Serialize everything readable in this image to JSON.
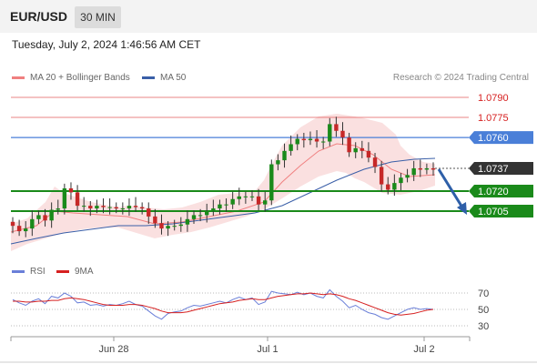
{
  "header": {
    "symbol": "EUR/USD",
    "timeframe": "30 MIN",
    "timestamp": "Tuesday, July 2, 2024 1:46:56 AM CET"
  },
  "legend": {
    "ma20_label": "MA 20 + Bollinger Bands",
    "ma50_label": "MA 50",
    "credit": "Research © 2024 Trading Central"
  },
  "colors": {
    "ma20": "#f08080",
    "ma50": "#3a5fa8",
    "support": "#1a8a1a",
    "resistance": "#e05050",
    "pivot": "#4a7fd8",
    "current": "#333333",
    "arrow": "#2e5fa8",
    "rsi": "#6a7fd8",
    "rsi_ma": "#d62020"
  },
  "price_levels": [
    {
      "value": "1.0790",
      "type": "resistance"
    },
    {
      "value": "1.0775",
      "type": "resistance"
    },
    {
      "value": "1.0760",
      "type": "pivot"
    },
    {
      "value": "1.0737",
      "type": "current"
    },
    {
      "value": "1.0720",
      "type": "support"
    },
    {
      "value": "1.0705",
      "type": "support"
    }
  ],
  "rsi_panel": {
    "rsi_label": "RSI",
    "ma_label": "9MA",
    "levels": [
      "70",
      "50",
      "30"
    ]
  },
  "x_axis": [
    "Jun 28",
    "Jul 1",
    "Jul 2"
  ],
  "chart_data": {
    "type": "candlestick",
    "price_axis": {
      "ylim": [
        1.0672,
        1.0795
      ]
    },
    "close": [
      1.0694,
      1.069,
      1.0692,
      1.0699,
      1.0702,
      1.0698,
      1.0706,
      1.0707,
      1.0722,
      1.0719,
      1.0709,
      1.0709,
      1.0707,
      1.0709,
      1.0708,
      1.0708,
      1.0707,
      1.0707,
      1.0709,
      1.0708,
      1.0707,
      1.0701,
      1.0696,
      1.0692,
      1.0694,
      1.0694,
      1.0695,
      1.0699,
      1.0702,
      1.0702,
      1.0705,
      1.0707,
      1.071,
      1.071,
      1.0714,
      1.0716,
      1.0716,
      1.0716,
      1.071,
      1.0713,
      1.074,
      1.0743,
      1.075,
      1.0755,
      1.0759,
      1.0758,
      1.0759,
      1.0757,
      1.0757,
      1.077,
      1.0765,
      1.076,
      1.0749,
      1.0752,
      1.075,
      1.0745,
      1.0738,
      1.0725,
      1.0721,
      1.0726,
      1.073,
      1.0732,
      1.0737,
      1.0736,
      1.0737,
      1.0736
    ],
    "rsi": [
      62,
      58,
      55,
      60,
      63,
      57,
      66,
      64,
      70,
      66,
      58,
      59,
      55,
      56,
      54,
      56,
      55,
      57,
      60,
      56,
      54,
      48,
      42,
      38,
      45,
      47,
      48,
      52,
      55,
      54,
      56,
      58,
      60,
      58,
      62,
      65,
      62,
      64,
      56,
      59,
      72,
      70,
      69,
      68,
      71,
      68,
      70,
      66,
      64,
      74,
      66,
      60,
      52,
      55,
      50,
      46,
      44,
      40,
      38,
      42,
      46,
      50,
      52,
      50,
      51,
      50
    ],
    "rsi_ma": [
      60,
      60,
      59,
      59,
      60,
      60,
      61,
      61,
      63,
      64,
      63,
      62,
      60,
      58,
      56,
      55,
      55,
      55,
      56,
      56,
      55,
      53,
      51,
      48,
      46,
      46,
      46,
      47,
      49,
      51,
      53,
      55,
      57,
      58,
      59,
      61,
      62,
      63,
      62,
      62,
      64,
      66,
      67,
      68,
      69,
      69,
      70,
      69,
      68,
      69,
      68,
      66,
      63,
      61,
      58,
      55,
      52,
      49,
      46,
      44,
      43,
      44,
      45,
      47,
      49,
      50
    ]
  }
}
